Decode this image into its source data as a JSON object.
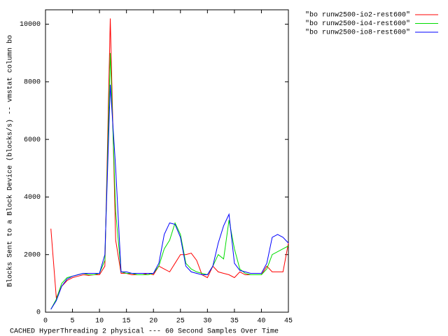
{
  "chart_data": {
    "type": "line",
    "x_label": "CACHED HyperThreading 2 physical --- 60 Second Samples Over Time",
    "y_label": "Blocks Sent to a Block Device (blocks/s) -- vmstat column bo",
    "x": [
      1,
      2,
      3,
      4,
      5,
      6,
      7,
      8,
      9,
      10,
      11,
      12,
      13,
      14,
      15,
      16,
      17,
      18,
      19,
      20,
      21,
      22,
      23,
      24,
      25,
      26,
      27,
      28,
      29,
      30,
      31,
      32,
      33,
      34,
      35,
      36,
      37,
      38,
      39,
      40,
      41,
      42,
      43,
      44,
      45
    ],
    "series": [
      {
        "name": "\"bo runw2500-io2-rest600\"",
        "color": "#ff0000",
        "values": [
          2900,
          500,
          900,
          1100,
          1200,
          1250,
          1300,
          1280,
          1300,
          1300,
          1600,
          10200,
          2500,
          1350,
          1350,
          1300,
          1300,
          1300,
          1350,
          1300,
          1600,
          1500,
          1400,
          1700,
          2000,
          2000,
          2050,
          1800,
          1300,
          1200,
          1600,
          1400,
          1350,
          1300,
          1200,
          1400,
          1300,
          1300,
          1300,
          1300,
          1600,
          1400,
          1400,
          1400,
          2400
        ]
      },
      {
        "name": "\"bo runw2500-io4-rest600\"",
        "color": "#00dd00",
        "values": [
          100,
          450,
          1000,
          1200,
          1250,
          1300,
          1350,
          1300,
          1300,
          1350,
          1800,
          9000,
          3500,
          1400,
          1350,
          1350,
          1300,
          1300,
          1300,
          1350,
          1600,
          2200,
          2500,
          3100,
          2700,
          1700,
          1500,
          1400,
          1350,
          1300,
          1600,
          2000,
          1850,
          3200,
          2200,
          1500,
          1350,
          1300,
          1300,
          1300,
          1500,
          2000,
          2100,
          2200,
          2300
        ]
      },
      {
        "name": "\"bo runw2500-io8-rest600\"",
        "color": "#0000ff",
        "values": [
          100,
          400,
          900,
          1150,
          1250,
          1300,
          1350,
          1350,
          1350,
          1350,
          2000,
          7900,
          5000,
          1400,
          1400,
          1350,
          1350,
          1350,
          1350,
          1350,
          1700,
          2700,
          3100,
          3050,
          2600,
          1600,
          1400,
          1350,
          1300,
          1300,
          1600,
          2400,
          3000,
          3400,
          1700,
          1450,
          1400,
          1350,
          1350,
          1350,
          1700,
          2600,
          2700,
          2600,
          2400
        ]
      }
    ],
    "xlim": [
      0,
      45
    ],
    "xticks": [
      0,
      5,
      10,
      15,
      20,
      25,
      30,
      35,
      40,
      45
    ],
    "ylim": [
      0,
      10500
    ],
    "yticks": [
      0,
      2000,
      4000,
      6000,
      8000,
      10000
    ],
    "legend": "top-right-outside"
  }
}
